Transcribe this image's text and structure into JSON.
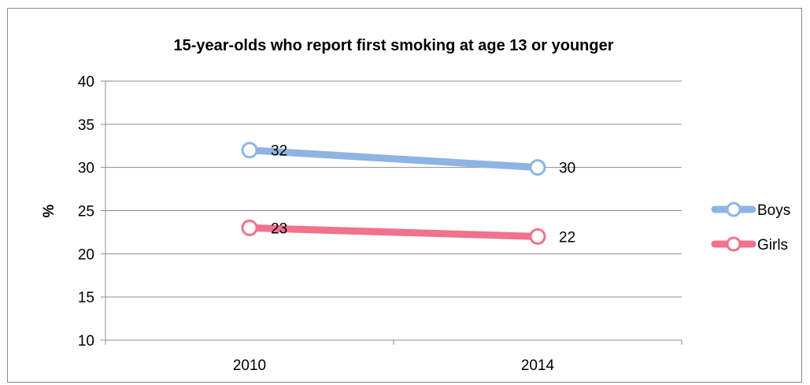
{
  "chart_data": {
    "type": "line",
    "title": "15-year-olds who report first smoking at age 13 or younger",
    "xlabel": "",
    "ylabel": "%",
    "categories": [
      "2010",
      "2014"
    ],
    "ylim": [
      10,
      40
    ],
    "yticks": [
      10,
      15,
      20,
      25,
      30,
      35,
      40
    ],
    "grid": true,
    "legend": "right",
    "series": [
      {
        "name": "Boys",
        "values": [
          32,
          30
        ],
        "labels": [
          "32",
          "30"
        ],
        "color": "#8eb4e3"
      },
      {
        "name": "Girls",
        "values": [
          23,
          22
        ],
        "labels": [
          "23",
          "22"
        ],
        "color": "#f0728c"
      }
    ]
  }
}
